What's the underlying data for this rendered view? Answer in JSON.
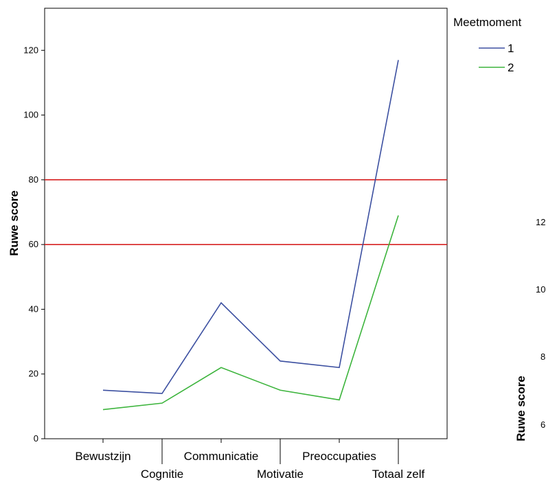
{
  "chart_data": {
    "type": "line",
    "categories": [
      "Bewustzijn",
      "Cognitie",
      "Communicatie",
      "Motivatie",
      "Preoccupaties",
      "Totaal zelf"
    ],
    "series": [
      {
        "name": "1",
        "values": [
          15,
          14,
          42,
          24,
          22,
          117
        ],
        "color": "#3b4fa0"
      },
      {
        "name": "2",
        "values": [
          9,
          11,
          22,
          15,
          12,
          69
        ],
        "color": "#3cb43c"
      }
    ],
    "reference_lines": [
      {
        "y": 80,
        "color": "#d62020"
      },
      {
        "y": 60,
        "color": "#d62020"
      }
    ],
    "xlabel": "",
    "ylabel": "Ruwe score",
    "ylim": [
      0,
      133
    ],
    "yticks": [
      0,
      20,
      40,
      60,
      80,
      100,
      120
    ],
    "grid": false,
    "legend": {
      "title": "Meetmoment",
      "placement": "top-right outside"
    }
  },
  "partial_chart": {
    "ylabel": "Ruwe score",
    "tick_labels": [
      "12",
      "10",
      "8",
      "6"
    ]
  }
}
